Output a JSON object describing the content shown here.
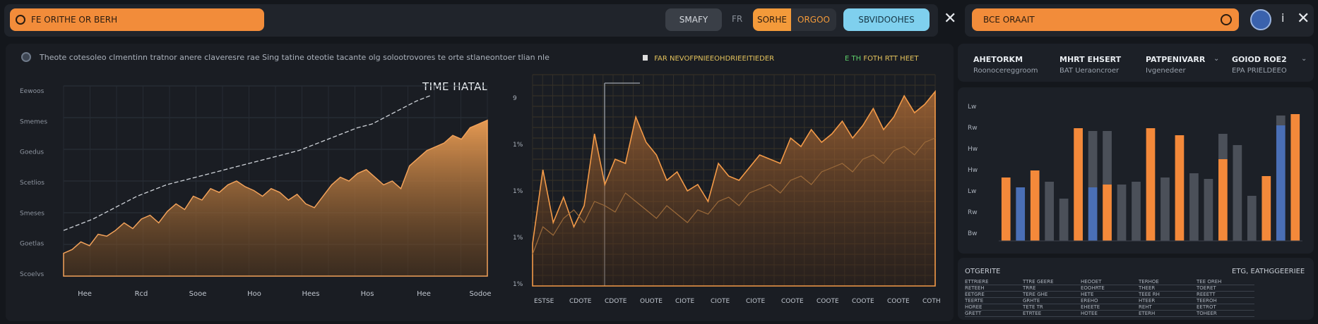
{
  "header": {
    "search_text": "FE ORITHE OR BERH",
    "btn_gray": "SMAFY",
    "sep": "FR",
    "seg_left": "SORHE",
    "seg_right": "ORGOO",
    "btn_blue": "SBVIDOOHES",
    "search2_text": "BCE ORAAIT"
  },
  "notice": "Theote cotesoleo clmentinn tratnor anere claveresre rae Sing tatine oteotie tacante olg solootrovores te orte stlaneontoer tlian nle",
  "mid": {
    "title": "FAR NEVOFPNIEEOHDRIEEITIEDER",
    "right_prefix": "E TH ",
    "right_text": "FOTH RTT HEET"
  },
  "stats": [
    {
      "title": "AHETORKM",
      "sub": "Roonocereggroom"
    },
    {
      "title": "MHRT EHSERT",
      "sub": "BAT Ueraoncroer"
    },
    {
      "title": "PATPENIVARR",
      "sub": "Ivgenedeer"
    },
    {
      "title": "GOIOD ROE2",
      "sub": "EPA PRIELDEEO"
    }
  ],
  "table": {
    "title": "OTGERITE",
    "right": "ETG, EATHGGEERIEE",
    "rows": [
      [
        "ETTRIERE",
        "TTRE GEERE",
        "HEOOET",
        "TERHOE",
        "TEE OREH"
      ],
      [
        "RETEEH",
        "TRRE",
        "EOOHRTE",
        "THEER",
        "TOERET"
      ],
      [
        "EETGRE",
        "TERE GHE",
        "HETE",
        "TEEE RH",
        "REEETT"
      ],
      [
        "TEERTE",
        "GRHTE",
        "EREHO",
        "HTEER",
        "TEEROH"
      ],
      [
        "HOREE",
        "TETE TR",
        "EHEETE",
        "REHT",
        "EETROT"
      ],
      [
        "GRETT",
        "ETRTEE",
        "HOTEE",
        "ETERH",
        "TOHEER"
      ]
    ]
  },
  "chart_data": [
    {
      "type": "area",
      "title": "TIME HATAL",
      "y_ticks": [
        "Eewoos",
        "Smemes",
        "Goedus",
        "Scetlios",
        "Smeses",
        "Goetlas",
        "Scoelvs"
      ],
      "x_ticks": [
        "Hee",
        "Rcd",
        "Sooe",
        "Hoo",
        "Hees",
        "Hos",
        "Hee",
        "Sodoe"
      ],
      "series": [
        {
          "values": [
            12,
            14,
            18,
            16,
            22,
            21,
            24,
            28,
            25,
            30,
            32,
            28,
            34,
            38,
            35,
            42,
            40,
            46,
            44,
            48,
            50,
            47,
            45,
            42,
            46,
            44,
            40,
            43,
            38,
            36,
            42,
            48,
            52,
            50,
            54,
            56,
            52,
            48,
            50,
            46,
            58,
            62,
            66,
            68,
            70,
            74,
            72,
            78,
            80,
            82
          ]
        },
        {
          "values": [
            24,
            27,
            30,
            34,
            38,
            42,
            45,
            48,
            50,
            52,
            54,
            56,
            58,
            60,
            62,
            64,
            66,
            69,
            72,
            75,
            78,
            80,
            84,
            88,
            92,
            95
          ]
        }
      ],
      "ylim": [
        0,
        100
      ]
    },
    {
      "type": "line",
      "y_ticks": [
        "9",
        "1%",
        "1%",
        "1%",
        "1%"
      ],
      "x_ticks": [
        "ESTSE",
        "CDOTE",
        "CDOTE",
        "OUOTE",
        "CIOTE",
        "CIOTE",
        "CIOTE",
        "COOTE",
        "COOTE",
        "COOTE",
        "COOTE",
        "COTH"
      ],
      "series": [
        {
          "values": [
            20,
            55,
            30,
            42,
            28,
            38,
            72,
            48,
            60,
            58,
            80,
            68,
            62,
            50,
            54,
            45,
            48,
            40,
            58,
            52,
            50,
            56,
            62,
            60,
            58,
            70,
            66,
            74,
            68,
            72,
            78,
            70,
            76,
            84,
            74,
            80,
            90,
            82,
            86,
            92
          ]
        },
        {
          "values": [
            15,
            28,
            24,
            32,
            36,
            30,
            40,
            38,
            35,
            44,
            40,
            36,
            32,
            38,
            34,
            30,
            36,
            34,
            40,
            42,
            38,
            44,
            46,
            48,
            44,
            50,
            52,
            48,
            54,
            56,
            58,
            54,
            60,
            62,
            58,
            64,
            66,
            62,
            68,
            70
          ]
        }
      ],
      "ylim": [
        0,
        100
      ]
    },
    {
      "type": "bar",
      "y_ticks": [
        "Lw",
        "Rw",
        "Hw",
        "Hw",
        "Lw",
        "Rw",
        "Bw"
      ],
      "series": [
        {
          "values": [
            45,
            0,
            50,
            0,
            0,
            0,
            80,
            0,
            0,
            40,
            0,
            0,
            0,
            80,
            0,
            0,
            45,
            0,
            0,
            0,
            0,
            80,
            0,
            0,
            0,
            0,
            0,
            44,
            0,
            88,
            0,
            0,
            0,
            0,
            0,
            0,
            0,
            0,
            0,
            0,
            0,
            0,
            0,
            0,
            0,
            0,
            0,
            0,
            0,
            0,
            0,
            0,
            0,
            0,
            0,
            0,
            0,
            0,
            0,
            0,
            0,
            0,
            0,
            0,
            0,
            0,
            0,
            0,
            0,
            0,
            0,
            0,
            0,
            0,
            0,
            0,
            0,
            0,
            0,
            0,
            0,
            0,
            0,
            0,
            0,
            0,
            0,
            0,
            0,
            0,
            0,
            0,
            0,
            0,
            0,
            0,
            0,
            0,
            0
          ]
        },
        {
          "values": [
            0,
            38,
            0,
            0,
            0,
            38,
            0,
            0,
            0,
            0,
            0,
            0,
            0,
            0,
            0,
            0,
            0,
            0,
            0,
            0,
            0,
            0,
            0,
            0,
            0,
            0,
            0,
            0,
            0,
            0,
            0,
            0,
            0,
            0,
            0,
            0,
            0,
            0,
            0,
            0,
            0,
            0,
            0,
            0,
            0,
            0,
            0,
            0,
            0,
            0,
            0,
            0,
            0,
            0,
            0,
            0,
            0,
            0,
            0,
            0,
            0,
            0,
            0,
            0,
            0,
            0,
            0,
            0,
            0,
            0,
            0,
            0,
            0,
            0,
            0,
            0,
            0,
            0,
            0,
            0,
            0,
            0,
            0,
            0,
            0,
            0,
            0,
            0,
            0,
            0,
            0,
            0,
            0,
            0,
            0,
            0,
            0,
            0,
            0,
            0
          ]
        },
        {
          "values": [
            0,
            0,
            0,
            42,
            30,
            0,
            0,
            0,
            0,
            0,
            0,
            0,
            0,
            0,
            0,
            0,
            0,
            0,
            0,
            0,
            0,
            0,
            0,
            0,
            0,
            0,
            0,
            0,
            0,
            0,
            0,
            0,
            0,
            0,
            0,
            0,
            0,
            0,
            0,
            0,
            0,
            0,
            0,
            0,
            0,
            0,
            0,
            0,
            0,
            0,
            0,
            0,
            0,
            0,
            0,
            0,
            0,
            0,
            0,
            0,
            0,
            0,
            0,
            0,
            0,
            0,
            0,
            0,
            0,
            0,
            0,
            0,
            0,
            0,
            0,
            0,
            0,
            0,
            0,
            0,
            0,
            0,
            0,
            0,
            0,
            0,
            0,
            0,
            0,
            0,
            0,
            0,
            0,
            0,
            0,
            0,
            0,
            0,
            0,
            0
          ]
        }
      ],
      "bars": [
        {
          "stack": [
            45
          ],
          "colors": [
            "#f4893a"
          ]
        },
        {
          "stack": [
            38
          ],
          "colors": [
            "#4a6fb6"
          ]
        },
        {
          "stack": [
            50
          ],
          "colors": [
            "#f4893a"
          ]
        },
        {
          "stack": [
            42
          ],
          "colors": [
            "#4b5059"
          ]
        },
        {
          "stack": [
            30
          ],
          "colors": [
            "#4b5059"
          ]
        },
        {
          "stack": [
            80
          ],
          "colors": [
            "#f4893a"
          ]
        },
        {
          "stack": [
            38,
            40
          ],
          "colors": [
            "#4a6fb6",
            "#4b5059"
          ]
        },
        {
          "stack": [
            40,
            38
          ],
          "colors": [
            "#f4893a",
            "#4b5059"
          ]
        },
        {
          "stack": [
            40
          ],
          "colors": [
            "#4b5059"
          ]
        },
        {
          "stack": [
            42
          ],
          "colors": [
            "#4b5059"
          ]
        },
        {
          "stack": [
            80
          ],
          "colors": [
            "#f4893a"
          ]
        },
        {
          "stack": [
            45
          ],
          "colors": [
            "#4b5059"
          ]
        },
        {
          "stack": [
            75
          ],
          "colors": [
            "#f4893a"
          ]
        },
        {
          "stack": [
            48
          ],
          "colors": [
            "#4b5059"
          ]
        },
        {
          "stack": [
            44
          ],
          "colors": [
            "#4b5059"
          ]
        },
        {
          "stack": [
            58,
            18
          ],
          "colors": [
            "#f4893a",
            "#4b5059"
          ]
        },
        {
          "stack": [
            48,
            20
          ],
          "colors": [
            "#4b5059",
            "#4b5059"
          ]
        },
        {
          "stack": [
            32
          ],
          "colors": [
            "#4b5059"
          ]
        },
        {
          "stack": [
            46
          ],
          "colors": [
            "#f4893a"
          ]
        },
        {
          "stack": [
            82,
            7
          ],
          "colors": [
            "#4a6fb6",
            "#4b5059"
          ]
        },
        {
          "stack": [
            90
          ],
          "colors": [
            "#f4893a"
          ]
        }
      ],
      "ylim": [
        0,
        100
      ]
    }
  ]
}
